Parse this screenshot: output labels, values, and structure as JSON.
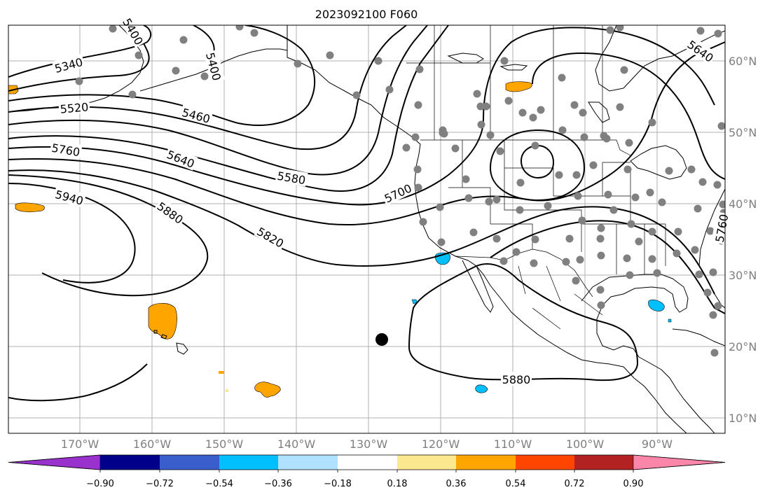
{
  "title": "2023092100 F060",
  "colors": {
    "station": "#808080",
    "grid": "#b0b0b0",
    "axis_label": "#808080"
  },
  "lon_labels": [
    "170°W",
    "160°W",
    "150°W",
    "140°W",
    "130°W",
    "120°W",
    "110°W",
    "100°W",
    "90°W"
  ],
  "lat_labels": [
    "60°N",
    "50°N",
    "40°N",
    "30°N",
    "20°N",
    "10°N"
  ],
  "contour_labels": [
    "5340",
    "5400",
    "5400",
    "5520",
    "5460",
    "5760",
    "5640",
    "5580",
    "5940",
    "5880",
    "5820",
    "5700",
    "5640",
    "5760",
    "5880"
  ],
  "colorbar": {
    "colors": [
      "#9932cc",
      "#00008b",
      "#3a5fcd",
      "#00bfff",
      "#b0e2ff",
      "#ffffff",
      "#fce98f",
      "#ffa500",
      "#ff4500",
      "#b22222",
      "#fa87aa"
    ],
    "labels": [
      "−0.90",
      "−0.72",
      "−0.54",
      "−0.36",
      "−0.18",
      "0.18",
      "0.36",
      "0.54",
      "0.72",
      "0.90"
    ]
  }
}
